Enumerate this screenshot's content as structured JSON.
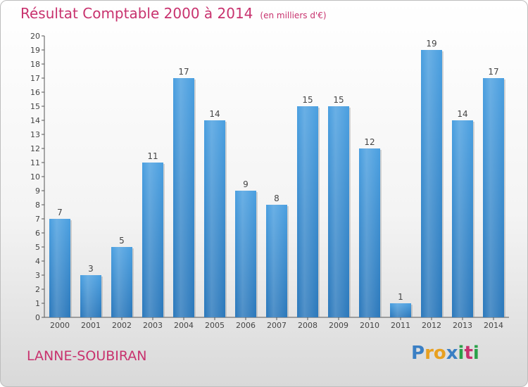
{
  "header": {
    "title": "Résultat Comptable 2000 à 2014",
    "subtitle": "(en milliers d'€)"
  },
  "footer": {
    "commune": "LANNE-SOUBIRAN",
    "logo_text": "Proxiti",
    "logo_letters": [
      "P",
      "r",
      "o",
      "x",
      "i",
      "t",
      "i"
    ],
    "logo_colors": [
      "#3a7fc4",
      "#e8a020",
      "#e8a020",
      "#3a7fc4",
      "#2aa14a",
      "#c8326e",
      "#2aa14a"
    ]
  },
  "chart_data": {
    "type": "bar",
    "title": "Résultat Comptable 2000 à 2014",
    "subtitle": "(en milliers d'€)",
    "categories": [
      "2000",
      "2001",
      "2002",
      "2003",
      "2004",
      "2005",
      "2006",
      "2007",
      "2008",
      "2009",
      "2010",
      "2011",
      "2012",
      "2013",
      "2014"
    ],
    "values": [
      7,
      3,
      5,
      11,
      17,
      14,
      9,
      8,
      15,
      15,
      12,
      1,
      19,
      14,
      17
    ],
    "ylim": [
      0,
      20
    ],
    "yticks": [
      "0",
      "1",
      "2",
      "3",
      "4",
      "5",
      "6",
      "7",
      "8",
      "9",
      "10",
      "11",
      "12",
      "13",
      "14",
      "15",
      "16",
      "17",
      "18",
      "19",
      "20"
    ],
    "grid": false,
    "bar_color": "#4a9fe0",
    "bar_color_dark": "#2b78bb"
  }
}
